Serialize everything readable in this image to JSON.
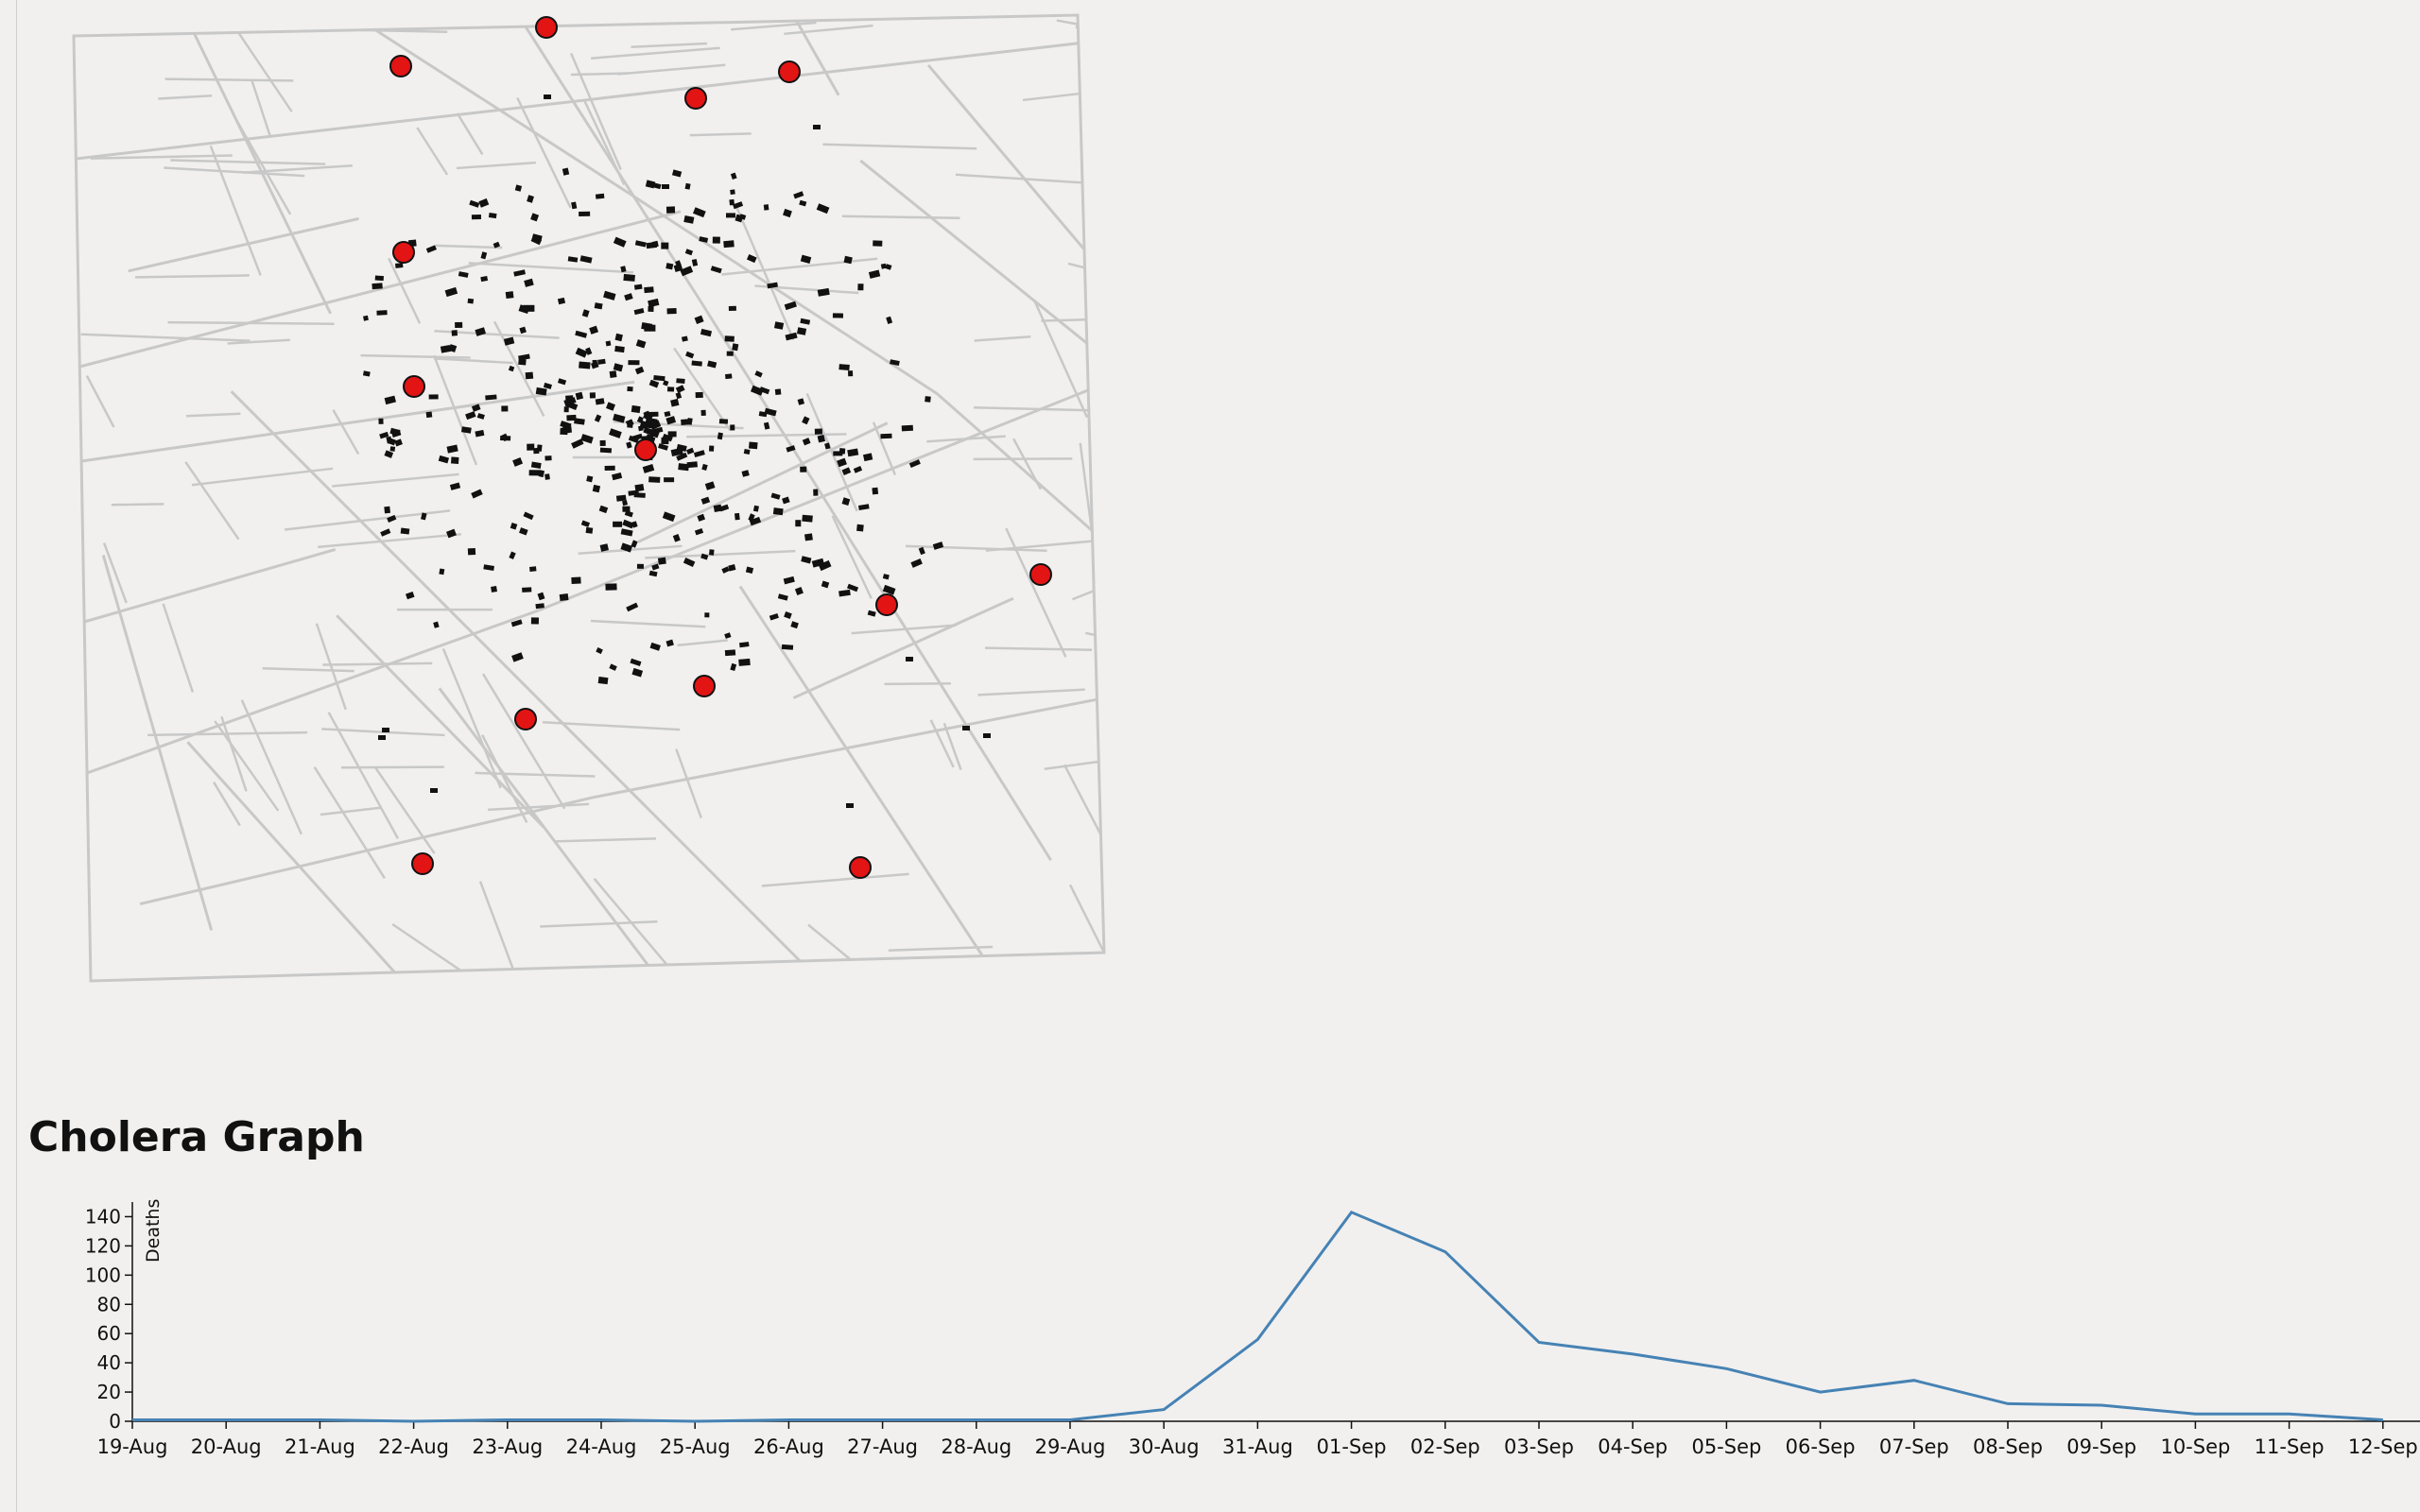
{
  "map": {
    "pumps": [
      {
        "x": 578,
        "y": 29
      },
      {
        "x": 424,
        "y": 70
      },
      {
        "x": 736,
        "y": 104
      },
      {
        "x": 835,
        "y": 76
      },
      {
        "x": 427,
        "y": 267
      },
      {
        "x": 438,
        "y": 409
      },
      {
        "x": 683,
        "y": 476
      },
      {
        "x": 1101,
        "y": 608
      },
      {
        "x": 938,
        "y": 640
      },
      {
        "x": 745,
        "y": 726
      },
      {
        "x": 556,
        "y": 761
      },
      {
        "x": 447,
        "y": 914
      },
      {
        "x": 910,
        "y": 918
      }
    ],
    "colors": {
      "pump_fill": "#e31414",
      "pump_stroke": "#111111",
      "street": "#c8c8c8",
      "death": "#111111"
    }
  },
  "graph": {
    "title": "Cholera Graph",
    "ylabel": "Deaths"
  },
  "chart_data": {
    "type": "line",
    "title": "",
    "xlabel": "",
    "ylabel": "Deaths",
    "ylim": [
      0,
      150
    ],
    "yticks": [
      0,
      20,
      40,
      60,
      80,
      100,
      120,
      140
    ],
    "categories": [
      "19-Aug",
      "20-Aug",
      "21-Aug",
      "22-Aug",
      "23-Aug",
      "24-Aug",
      "25-Aug",
      "26-Aug",
      "27-Aug",
      "28-Aug",
      "29-Aug",
      "30-Aug",
      "31-Aug",
      "01-Sep",
      "02-Sep",
      "03-Sep",
      "04-Sep",
      "05-Sep",
      "06-Sep",
      "07-Sep",
      "08-Sep",
      "09-Sep",
      "10-Sep",
      "11-Sep",
      "12-Sep"
    ],
    "values": [
      1,
      1,
      1,
      0,
      1,
      1,
      0,
      1,
      1,
      1,
      1,
      8,
      56,
      143,
      116,
      54,
      46,
      36,
      20,
      28,
      12,
      11,
      5,
      5,
      1
    ],
    "line_color": "#4682b4",
    "grid": false
  }
}
